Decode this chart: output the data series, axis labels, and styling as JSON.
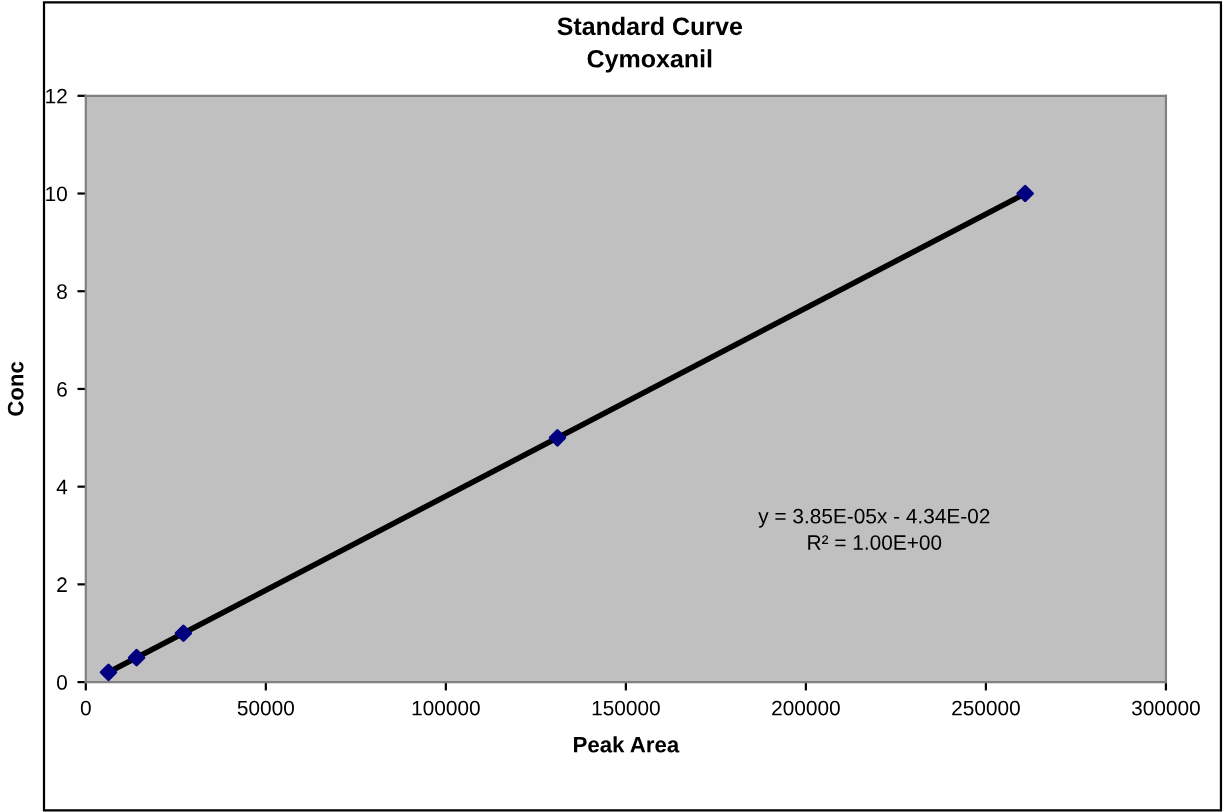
{
  "chart_data": {
    "type": "scatter",
    "title": "Standard Curve",
    "subtitle": "Cymoxanil",
    "xlabel": "Peak Area",
    "ylabel": "Conc",
    "series": [
      {
        "type": "line",
        "color": "#000000",
        "x": [
          6300,
          260900
        ],
        "values": [
          0.2,
          10
        ],
        "marker": "none"
      },
      {
        "color": "#000080",
        "x": [
          6300,
          14100,
          27100,
          131000,
          260900
        ],
        "values": [
          0.2,
          0.5,
          1,
          5,
          10
        ],
        "marker": "diamond"
      }
    ],
    "annotations": [
      "y = 3.85E-05x - 4.34E-02",
      "R² = 1.00E+00"
    ],
    "xlim": [
      0,
      300000
    ],
    "xticks": [
      0,
      50000,
      100000,
      150000,
      200000,
      250000,
      300000
    ],
    "ylim": [
      0,
      12
    ],
    "yticks": [
      0,
      2,
      4,
      6,
      8,
      10,
      12
    ],
    "grid": false,
    "legend": false
  }
}
